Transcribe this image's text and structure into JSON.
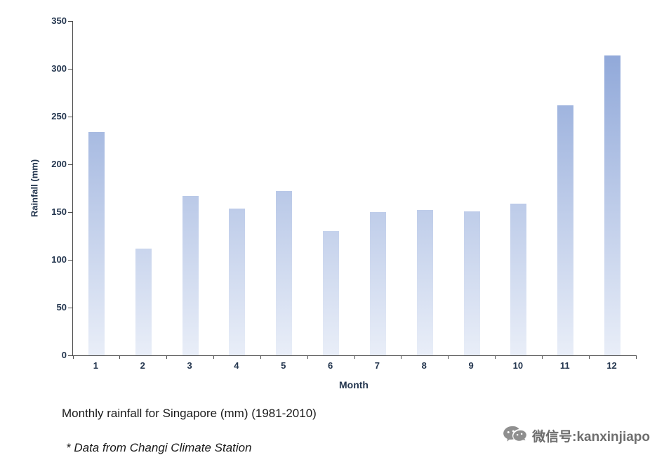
{
  "chart": {
    "caption": "Monthly rainfall for Singapore (mm) (1981-2010)",
    "footnote": "* Data from Changi Climate Station"
  },
  "watermark": {
    "icon": "wechat-icon",
    "text": "微信号:kanxinjiapo"
  },
  "chart_data": {
    "type": "bar",
    "categories": [
      "1",
      "2",
      "3",
      "4",
      "5",
      "6",
      "7",
      "8",
      "9",
      "10",
      "11",
      "12"
    ],
    "values": [
      234,
      112,
      167,
      154,
      172,
      130,
      150,
      152,
      151,
      159,
      262,
      314
    ],
    "title": "Monthly rainfall for Singapore (mm) (1981-2010)",
    "xlabel": "Month",
    "ylabel": "Rainfall (mm)",
    "ylim": [
      0,
      350
    ],
    "ytick_step": 50,
    "grid": false,
    "legend": false,
    "bar_color_top": "#87A1D6",
    "bar_color_bottom": "#E9EEF8",
    "axis_color": "#4d4d4d",
    "tick_label_color": "#24364F"
  }
}
